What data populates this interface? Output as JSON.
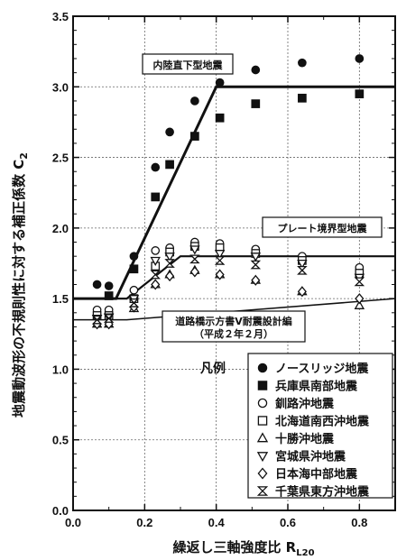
{
  "chart_data": {
    "type": "scatter",
    "xlabel": "繰返し三軸強度比 R",
    "xlabel_sub": "L20",
    "ylabel": "地震動波形の不規則性に対する補正係数 C",
    "ylabel_sub": "2",
    "xlim": [
      0.0,
      0.9
    ],
    "ylim": [
      0.0,
      3.5
    ],
    "xticks": [
      "0.0",
      "0.2",
      "0.4",
      "0.6",
      "0.8"
    ],
    "yticks": [
      "0.0",
      "0.5",
      "1.0",
      "1.5",
      "2.0",
      "2.5",
      "3.0",
      "3.5"
    ],
    "legend_title": "凡例",
    "series": [
      {
        "name": "ノースリッジ地震",
        "marker": "filled-circle",
        "x": [
          0.067,
          0.1,
          0.17,
          0.23,
          0.27,
          0.34,
          0.41,
          0.51,
          0.64,
          0.8
        ],
        "y": [
          1.6,
          1.59,
          1.8,
          2.43,
          2.68,
          2.9,
          3.03,
          3.12,
          3.17,
          3.2
        ]
      },
      {
        "name": "兵庫県南部地震",
        "marker": "filled-square",
        "x": [
          0.1,
          0.17,
          0.23,
          0.27,
          0.34,
          0.41,
          0.51,
          0.64,
          0.8
        ],
        "y": [
          1.52,
          1.71,
          2.22,
          2.45,
          2.65,
          2.78,
          2.88,
          2.92,
          2.95
        ]
      },
      {
        "name": "釧路沖地震",
        "marker": "open-circle",
        "x": [
          0.067,
          0.1,
          0.17,
          0.23,
          0.27,
          0.34,
          0.41,
          0.51,
          0.64,
          0.8
        ],
        "y": [
          1.42,
          1.42,
          1.56,
          1.84,
          1.86,
          1.9,
          1.89,
          1.85,
          1.8,
          1.72
        ]
      },
      {
        "name": "北海道南西沖地震",
        "marker": "open-square",
        "x": [
          0.067,
          0.1,
          0.17,
          0.23,
          0.27,
          0.34,
          0.41,
          0.51,
          0.64,
          0.8
        ],
        "y": [
          1.38,
          1.38,
          1.5,
          1.73,
          1.83,
          1.87,
          1.86,
          1.82,
          1.77,
          1.68
        ]
      },
      {
        "name": "十勝沖地震",
        "marker": "open-triangle-up",
        "x": [
          0.067,
          0.1,
          0.17,
          0.23,
          0.27,
          0.34,
          0.41,
          0.51,
          0.64,
          0.8
        ],
        "y": [
          1.32,
          1.32,
          1.43,
          1.6,
          1.67,
          1.7,
          1.67,
          1.63,
          1.55,
          1.45
        ]
      },
      {
        "name": "宮城県沖地震",
        "marker": "open-triangle-down",
        "x": [
          0.067,
          0.1,
          0.17,
          0.23,
          0.27,
          0.34,
          0.41,
          0.51,
          0.64,
          0.8
        ],
        "y": [
          1.36,
          1.37,
          1.5,
          1.77,
          1.8,
          1.85,
          1.82,
          1.8,
          1.75,
          1.65
        ]
      },
      {
        "name": "日本海中部地震",
        "marker": "open-diamond",
        "x": [
          0.067,
          0.1,
          0.17,
          0.23,
          0.27,
          0.34,
          0.41,
          0.51,
          0.64,
          0.8
        ],
        "y": [
          1.32,
          1.32,
          1.44,
          1.6,
          1.66,
          1.69,
          1.67,
          1.63,
          1.55,
          1.5
        ]
      },
      {
        "name": "千葉県東方沖地震",
        "marker": "bowtie",
        "x": [
          0.067,
          0.1,
          0.17,
          0.23,
          0.27,
          0.34,
          0.41,
          0.51,
          0.64,
          0.8
        ],
        "y": [
          1.35,
          1.36,
          1.47,
          1.67,
          1.75,
          1.78,
          1.77,
          1.74,
          1.7,
          1.62
        ]
      }
    ],
    "lines": [
      {
        "label": "内陸直下型地震",
        "style": "thick",
        "x": [
          0.0,
          0.12,
          0.4,
          0.9
        ],
        "y": [
          1.5,
          1.5,
          3.0,
          3.0
        ]
      },
      {
        "label": "プレート境界型地震",
        "style": "medium",
        "x": [
          0.0,
          0.15,
          0.3,
          0.9
        ],
        "y": [
          1.5,
          1.5,
          1.8,
          1.8
        ]
      },
      {
        "label": "道路橋示方書Ⅴ耐震設計編",
        "label2": "（平成２年２月）",
        "style": "thin",
        "x": [
          0.0,
          0.15,
          0.9
        ],
        "y": [
          1.35,
          1.35,
          1.5
        ]
      }
    ]
  }
}
